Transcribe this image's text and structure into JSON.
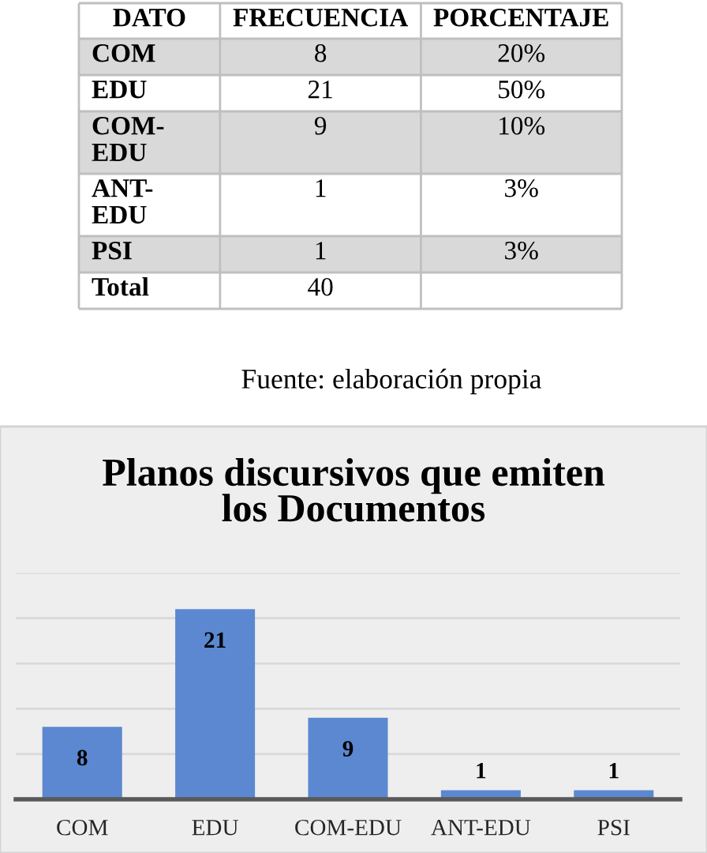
{
  "chart_data": [
    {
      "type": "other",
      "ylabel": "DATO",
      "categories": [
        "COM",
        "EDU",
        "COM-EDU",
        "ANT-EDU",
        "PSI",
        "Total"
      ],
      "colors": [
        "#d9d9d9",
        "#ffffff",
        "#d9d9d9",
        "#ffffff",
        "#d9d9d9",
        "#ffffff"
      ],
      "series": [
        {
          "name": "FRECUENCIA",
          "values": [
            8,
            21,
            9,
            1,
            1,
            40
          ]
        },
        {
          "name": "PORCENTAJE",
          "values": [
            20,
            50,
            10,
            3,
            3,
            null
          ],
          "value_labels": [
            "20%",
            "50%",
            "10%",
            "3%",
            "3%",
            null
          ]
        }
      ],
      "data_labels": true,
      "annotations": [
        "Fuente: elaboración propia"
      ]
    },
    {
      "type": "bar",
      "title": "Planos discursivos que emiten los Documentos",
      "categories": [
        "COM",
        "EDU",
        "COM-EDU",
        "ANT-EDU",
        "PSI"
      ],
      "values": [
        8,
        21,
        9,
        1,
        1
      ],
      "color": "#5b88d0",
      "data_labels": true,
      "ylim": [
        0,
        25
      ],
      "yticks": [
        {
          "value": 0,
          "label": null
        },
        {
          "value": 5,
          "label": null
        },
        {
          "value": 10,
          "label": null
        },
        {
          "value": 15,
          "label": null
        },
        {
          "value": 20,
          "label": null
        },
        {
          "value": 25,
          "label": null
        }
      ],
      "grid": "y",
      "tick_labels": "x"
    }
  ]
}
